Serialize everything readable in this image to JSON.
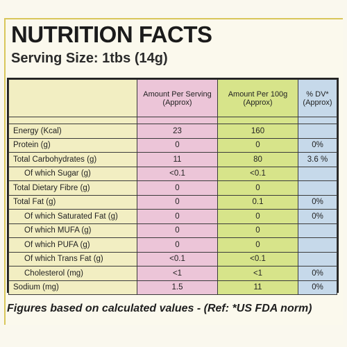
{
  "title": "NUTRITION FACTS",
  "serving_size": "Serving Size: 1tbs (14g)",
  "table": {
    "headers": {
      "per_serving": [
        "Amount Per Serving",
        "(Approx)"
      ],
      "per_100g": [
        "Amount Per 100g",
        "(Approx)"
      ],
      "dv": [
        "% DV*",
        "(Approx)"
      ]
    },
    "rows": [
      {
        "name": "Energy (Kcal)",
        "per_serving": "23",
        "per_100g": "160",
        "dv": ""
      },
      {
        "name": "Protein (g)",
        "per_serving": "0",
        "per_100g": "0",
        "dv": "0%"
      },
      {
        "name": "Total Carbohydrates (g)",
        "per_serving": "11",
        "per_100g": "80",
        "dv": "3.6 %"
      },
      {
        "name": "Of which Sugar (g)",
        "per_serving": "<0.1",
        "per_100g": "<0.1",
        "dv": ""
      },
      {
        "name": "Total Dietary Fibre (g)",
        "per_serving": "0",
        "per_100g": "0",
        "dv": ""
      },
      {
        "name": "Total Fat (g)",
        "per_serving": "0",
        "per_100g": "0.1",
        "dv": "0%"
      },
      {
        "name": "Of which Saturated Fat (g)",
        "per_serving": "0",
        "per_100g": "0",
        "dv": "0%"
      },
      {
        "name": "Of which MUFA (g)",
        "per_serving": "0",
        "per_100g": "0",
        "dv": ""
      },
      {
        "name": "Of which PUFA (g)",
        "per_serving": "0",
        "per_100g": "0",
        "dv": ""
      },
      {
        "name": "Of which Trans Fat (g)",
        "per_serving": "<0.1",
        "per_100g": "<0.1",
        "dv": ""
      },
      {
        "name": "Cholesterol (mg)",
        "per_serving": "<1",
        "per_100g": "<1",
        "dv": "0%"
      },
      {
        "name": "Sodium (mg)",
        "per_serving": "1.5",
        "per_100g": "11",
        "dv": "0%"
      }
    ]
  },
  "footer": "Figures based on calculated values - (Ref: *US FDA norm)"
}
